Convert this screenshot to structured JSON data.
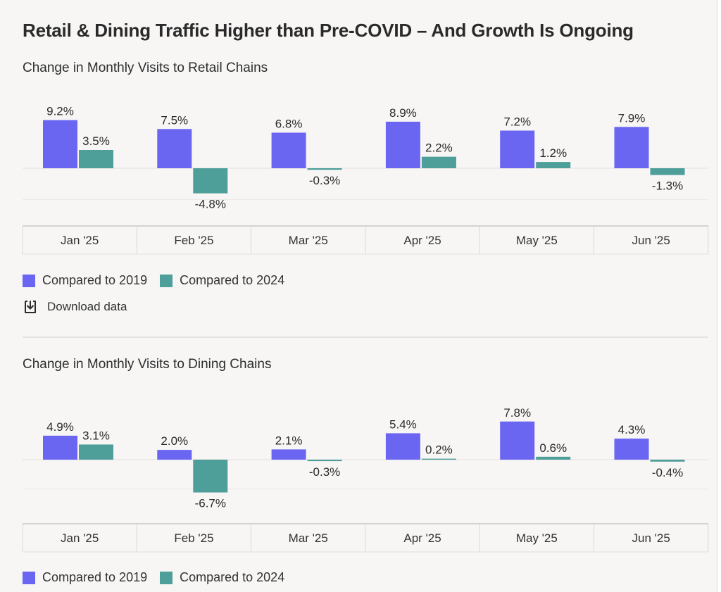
{
  "title": "Retail & Dining Traffic Higher than Pre-COVID – And Growth Is Ongoing",
  "download_label": "Download data",
  "colors": {
    "series_2019": "#6b66f2",
    "series_2024": "#4e9e9a"
  },
  "chart_data": [
    {
      "type": "bar",
      "title": "Change in Monthly Visits to Retail Chains",
      "categories": [
        "Jan '25",
        "Feb '25",
        "Mar '25",
        "Apr '25",
        "May '25",
        "Jun '25"
      ],
      "series": [
        {
          "name": "Compared to 2019",
          "values": [
            9.2,
            7.5,
            6.8,
            8.9,
            7.2,
            7.9
          ],
          "labels": [
            "9.2%",
            "7.5%",
            "6.8%",
            "8.9%",
            "7.2%",
            "7.9%"
          ]
        },
        {
          "name": "Compared to 2024",
          "values": [
            3.5,
            -4.8,
            -0.3,
            2.2,
            1.2,
            -1.3
          ],
          "labels": [
            "3.5%",
            "-4.8%",
            "-0.3%",
            "2.2%",
            "1.2%",
            "-1.3%"
          ]
        }
      ],
      "xlabel": "",
      "ylabel": "",
      "legend": "bottom-left"
    },
    {
      "type": "bar",
      "title": "Change in Monthly Visits to Dining Chains",
      "categories": [
        "Jan '25",
        "Feb '25",
        "Mar '25",
        "Apr '25",
        "May '25",
        "Jun '25"
      ],
      "series": [
        {
          "name": "Compared to 2019",
          "values": [
            4.9,
            2.0,
            2.1,
            5.4,
            7.8,
            4.3
          ],
          "labels": [
            "4.9%",
            "2.0%",
            "2.1%",
            "5.4%",
            "7.8%",
            "4.3%"
          ]
        },
        {
          "name": "Compared to 2024",
          "values": [
            3.1,
            -6.7,
            -0.3,
            0.2,
            0.6,
            -0.4
          ],
          "labels": [
            "3.1%",
            "-6.7%",
            "-0.3%",
            "0.2%",
            "0.6%",
            "-0.4%"
          ]
        }
      ],
      "xlabel": "",
      "ylabel": "",
      "legend": "bottom-left"
    }
  ]
}
